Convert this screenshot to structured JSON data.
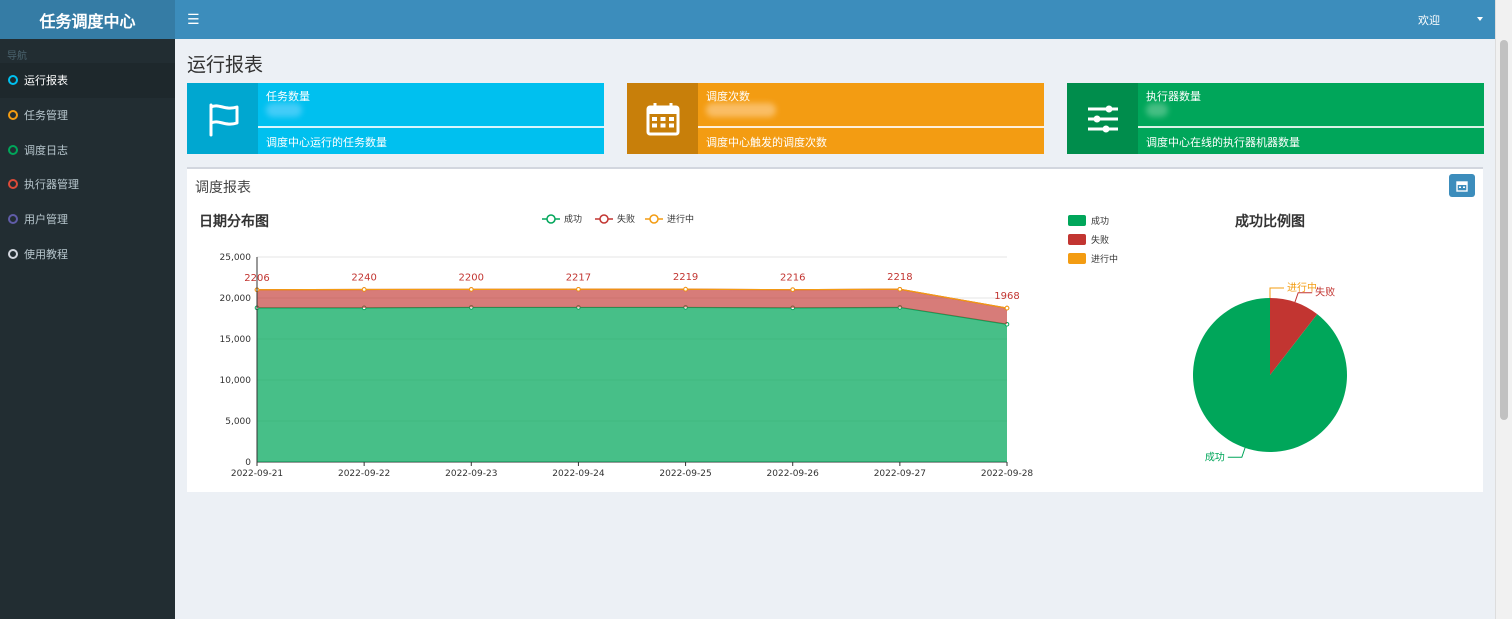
{
  "sidebar": {
    "logo": "任务调度中心",
    "nav_header": "导航",
    "items": [
      {
        "label": "运行报表",
        "color": "#00c0ef"
      },
      {
        "label": "任务管理",
        "color": "#f39c12"
      },
      {
        "label": "调度日志",
        "color": "#00a65a"
      },
      {
        "label": "执行器管理",
        "color": "#dd4b39"
      },
      {
        "label": "用户管理",
        "color": "#605ca8"
      },
      {
        "label": "使用教程",
        "color": "#d2d6de"
      }
    ]
  },
  "header": {
    "toggle_icon": "☰",
    "welcome": "欢迎"
  },
  "page": {
    "title": "运行报表"
  },
  "info_boxes": [
    {
      "title": "任务数量",
      "desc": "调度中心运行的任务数量",
      "icon": "flag-icon"
    },
    {
      "title": "调度次数",
      "desc": "调度中心触发的调度次数",
      "icon": "calendar-icon"
    },
    {
      "title": "执行器数量",
      "desc": "调度中心在线的执行器机器数量",
      "icon": "sliders-icon"
    }
  ],
  "report_panel": {
    "title": "调度报表"
  },
  "colors": {
    "success": "#00a65a",
    "fail": "#c23531",
    "running": "#f39c12"
  },
  "chart_data": [
    {
      "type": "area",
      "title": "日期分布图",
      "legend": [
        "成功",
        "失败",
        "进行中"
      ],
      "x": [
        "2022-09-21",
        "2022-09-22",
        "2022-09-23",
        "2022-09-24",
        "2022-09-25",
        "2022-09-26",
        "2022-09-27",
        "2022-09-28"
      ],
      "series": [
        {
          "name": "成功",
          "values": [
            18800,
            18800,
            18850,
            18850,
            18850,
            18800,
            18850,
            16800
          ]
        },
        {
          "name": "失败",
          "values": [
            2206,
            2240,
            2200,
            2217,
            2219,
            2216,
            2218,
            1968
          ]
        },
        {
          "name": "进行中",
          "values": [
            0,
            0,
            0,
            0,
            0,
            0,
            0,
            0
          ]
        }
      ],
      "data_labels": [
        "2206",
        "2240",
        "2200",
        "2217",
        "2219",
        "2216",
        "2218",
        "1968"
      ],
      "y_ticks": [
        "0",
        "5,000",
        "10,000",
        "15,000",
        "20,000",
        "25,000"
      ],
      "ylim": [
        0,
        25000
      ],
      "stacked": true
    },
    {
      "type": "pie",
      "title": "成功比例图",
      "legend": [
        "成功",
        "失败",
        "进行中"
      ],
      "slices": [
        {
          "name": "成功",
          "value": 89.5
        },
        {
          "name": "失败",
          "value": 10.5
        },
        {
          "name": "进行中",
          "value": 0
        }
      ]
    }
  ]
}
